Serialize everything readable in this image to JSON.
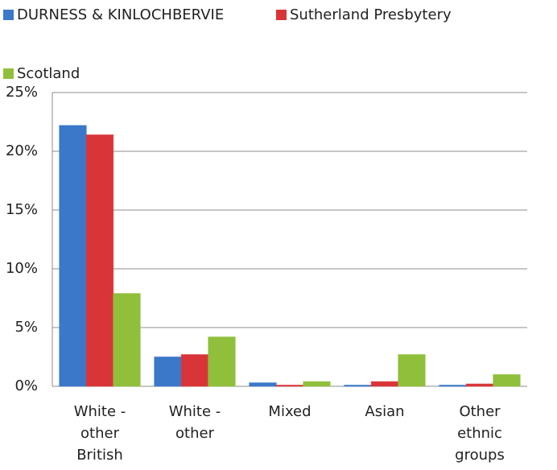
{
  "chart_data": {
    "type": "bar",
    "categories": [
      "White - other British",
      "White - other",
      "Mixed",
      "Asian",
      "Other ethnic groups"
    ],
    "series": [
      {
        "name": "DURNESS & KINLOCHBERVIE",
        "color": "#3b78c9",
        "values": [
          22.2,
          2.5,
          0.3,
          0.1,
          0.1
        ]
      },
      {
        "name": "Sutherland Presbytery",
        "color": "#d93538",
        "values": [
          21.4,
          2.7,
          0.1,
          0.4,
          0.2
        ]
      },
      {
        "name": "Scotland",
        "color": "#90bf3c",
        "values": [
          7.9,
          4.2,
          0.4,
          2.7,
          1.0
        ]
      }
    ],
    "ylim": [
      0,
      25
    ],
    "yticks": [
      {
        "value": 0,
        "label": "0%"
      },
      {
        "value": 5,
        "label": "5%"
      },
      {
        "value": 10,
        "label": "10%"
      },
      {
        "value": 15,
        "label": "15%"
      },
      {
        "value": 20,
        "label": "20%"
      },
      {
        "value": 25,
        "label": "25%"
      }
    ],
    "grid": true,
    "legend": "top"
  }
}
